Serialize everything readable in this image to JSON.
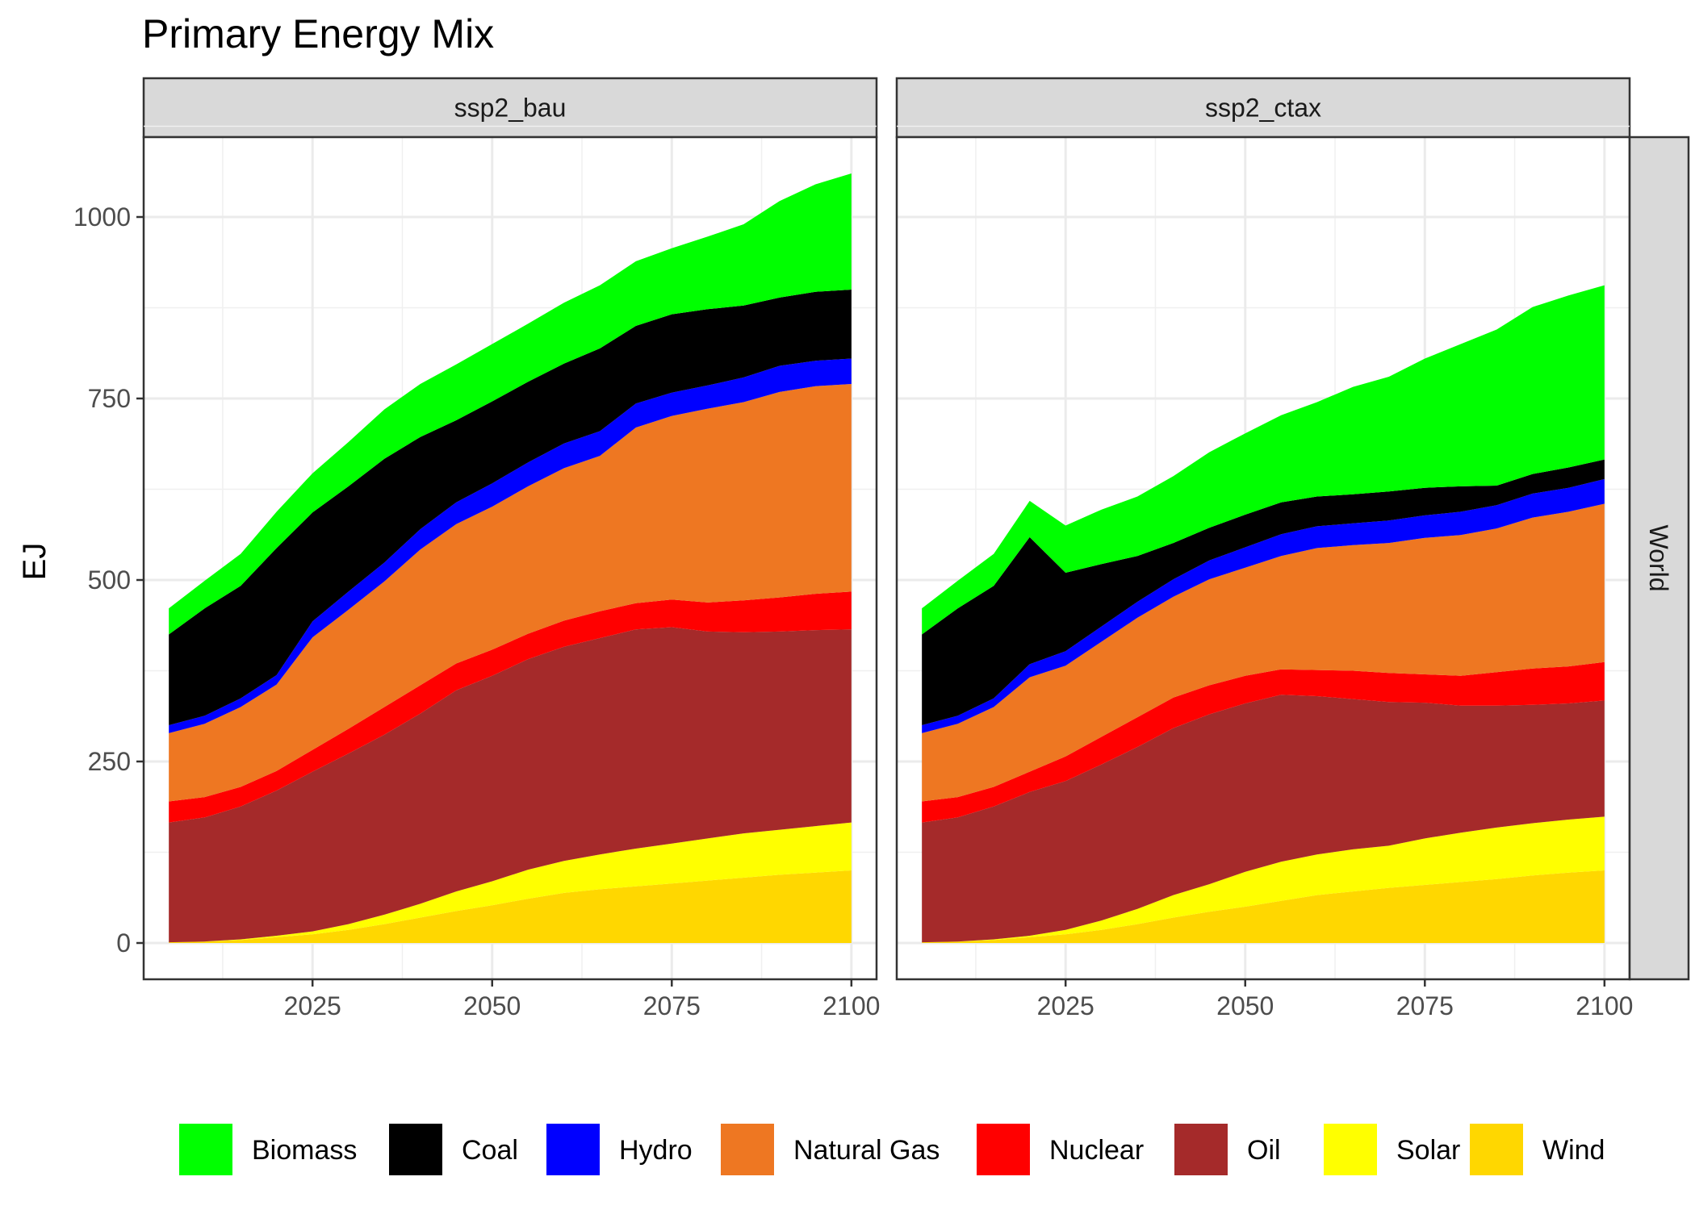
{
  "chart_data": {
    "type": "area",
    "stacked": true,
    "title": "Primary Energy Mix",
    "ylabel": "EJ",
    "xlabel": "",
    "row_strip": "World",
    "ylim": [
      -50,
      1110
    ],
    "xlim": [
      2001.5,
      2103.5
    ],
    "x_ticks": [
      2025,
      2050,
      2075,
      2100
    ],
    "y_ticks": [
      0,
      250,
      500,
      750,
      1000
    ],
    "grid": true,
    "legend_position": "bottom",
    "colors": {
      "Biomass": "#00ff00",
      "Coal": "#000000",
      "Hydro": "#0000ff",
      "Natural Gas": "#ee7722",
      "Nuclear": "#ff0000",
      "Oil": "#a52a2a",
      "Solar": "#ffff00",
      "Wind": "#ffd700"
    },
    "legend": [
      "Biomass",
      "Coal",
      "Hydro",
      "Natural Gas",
      "Nuclear",
      "Oil",
      "Solar",
      "Wind"
    ],
    "stack_order": [
      "Wind",
      "Solar",
      "Oil",
      "Nuclear",
      "Natural Gas",
      "Hydro",
      "Coal",
      "Biomass"
    ],
    "x": [
      2005,
      2010,
      2015,
      2020,
      2025,
      2030,
      2035,
      2040,
      2045,
      2050,
      2055,
      2060,
      2065,
      2070,
      2075,
      2080,
      2085,
      2090,
      2095,
      2100
    ],
    "panels": [
      {
        "name": "ssp2_bau",
        "series": [
          {
            "name": "Wind",
            "values": [
              1,
              2,
              4,
              8,
              12,
              18,
              26,
              35,
              44,
              52,
              61,
              69,
              74,
              78,
              82,
              86,
              90,
              94,
              97,
              100
            ]
          },
          {
            "name": "Solar",
            "values": [
              0,
              0,
              1,
              2,
              4,
              8,
              13,
              19,
              27,
              33,
              40,
              44,
              48,
              52,
              55,
              58,
              61,
              62,
              64,
              66
            ]
          },
          {
            "name": "Oil",
            "values": [
              165,
              171,
              183,
              200,
              220,
              235,
              248,
              262,
              277,
              283,
              290,
              295,
              298,
              302,
              298,
              285,
              277,
              273,
              270,
              266
            ]
          },
          {
            "name": "Nuclear",
            "values": [
              29,
              28,
              27,
              27,
              30,
              34,
              38,
              39,
              37,
              36,
              35,
              36,
              37,
              36,
              38,
              40,
              44,
              47,
              50,
              52
            ]
          },
          {
            "name": "Natural Gas",
            "values": [
              94,
              101,
              110,
              119,
              155,
              164,
              173,
              187,
              192,
              197,
              203,
              210,
              214,
              242,
              253,
              267,
              273,
              283,
              286,
              286
            ]
          },
          {
            "name": "Hydro",
            "values": [
              11,
              11,
              12,
              13,
              22,
              25,
              26,
              28,
              30,
              32,
              33,
              34,
              34,
              33,
              32,
              32,
              34,
              36,
              35,
              35
            ]
          },
          {
            "name": "Coal",
            "values": [
              125,
              148,
              155,
              175,
              150,
              145,
              143,
              127,
              113,
              113,
              111,
              110,
              114,
              107,
              108,
              105,
              99,
              94,
              95,
              95
            ]
          },
          {
            "name": "Biomass",
            "values": [
              36,
              38,
              44,
              50,
              54,
              61,
              68,
              73,
              77,
              79,
              80,
              84,
              87,
              89,
              91,
              100,
              112,
              133,
              148,
              160
            ]
          }
        ]
      },
      {
        "name": "ssp2_ctax",
        "series": [
          {
            "name": "Wind",
            "values": [
              1,
              2,
              4,
              8,
              12,
              18,
              26,
              35,
              43,
              50,
              58,
              66,
              71,
              76,
              80,
              84,
              88,
              93,
              97,
              100
            ]
          },
          {
            "name": "Solar",
            "values": [
              0,
              0,
              1,
              2,
              6,
              13,
              21,
              31,
              38,
              48,
              54,
              56,
              58,
              58,
              64,
              68,
              71,
              72,
              73,
              74
            ]
          },
          {
            "name": "Oil",
            "values": [
              165,
              171,
              183,
              198,
              205,
              215,
              223,
              230,
              234,
              232,
              230,
              218,
              207,
              198,
              187,
              175,
              168,
              163,
              160,
              160
            ]
          },
          {
            "name": "Nuclear",
            "values": [
              29,
              28,
              27,
              28,
              34,
              38,
              41,
              42,
              40,
              38,
              35,
              36,
              39,
              40,
              39,
              41,
              46,
              50,
              51,
              53
            ]
          },
          {
            "name": "Natural Gas",
            "values": [
              94,
              101,
              110,
              130,
              125,
              131,
              137,
              139,
              146,
              149,
              156,
              168,
              173,
              179,
              188,
              194,
              198,
              208,
              213,
              218
            ]
          },
          {
            "name": "Hydro",
            "values": [
              11,
              11,
              12,
              18,
              20,
              21,
              22,
              24,
              26,
              28,
              30,
              30,
              30,
              31,
              31,
              32,
              32,
              33,
              33,
              34
            ]
          },
          {
            "name": "Coal",
            "values": [
              125,
              148,
              155,
              175,
              108,
              86,
              63,
              50,
              45,
              45,
              44,
              41,
              40,
              40,
              38,
              35,
              27,
              27,
              28,
              27
            ]
          },
          {
            "name": "Biomass",
            "values": [
              36,
              38,
              44,
              50,
              65,
              75,
              82,
              92,
              104,
              112,
              120,
              130,
              148,
              158,
              178,
              196,
              215,
              230,
              237,
              240
            ]
          }
        ]
      }
    ]
  }
}
